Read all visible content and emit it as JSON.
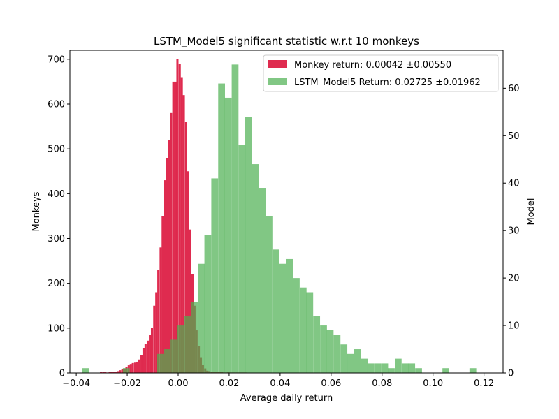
{
  "chart_data": {
    "type": "bar",
    "title": "LSTM_Model5 significant statistic w.r.t 10 monkeys",
    "xlabel": "Average daily return",
    "ylabel": "Monkeys",
    "y2label": "Model",
    "xlim": [
      -0.0425,
      0.1275
    ],
    "ylim": [
      0,
      720
    ],
    "y2lim": [
      0,
      68
    ],
    "xticks": [
      -0.04,
      -0.02,
      0.0,
      0.02,
      0.04,
      0.06,
      0.08,
      0.1,
      0.12
    ],
    "xtick_labels": [
      "−0.04",
      "−0.02",
      "0.00",
      "0.02",
      "0.04",
      "0.06",
      "0.08",
      "0.10",
      "0.12"
    ],
    "yticks": [
      0,
      100,
      200,
      300,
      400,
      500,
      600,
      700
    ],
    "y2ticks": [
      0,
      10,
      20,
      30,
      40,
      50,
      60
    ],
    "legend_position": "top-right",
    "series": [
      {
        "name": "Monkey return: 0.00042 ±0.00550",
        "axis": "left",
        "color": "#DC143C",
        "alpha": 0.9,
        "bin_width": 0.00083,
        "bin_starts": [
          -0.0307,
          -0.0298,
          -0.029,
          -0.0282,
          -0.0273,
          -0.0265,
          -0.0257,
          -0.0248,
          -0.024,
          -0.0232,
          -0.0223,
          -0.0215,
          -0.0207,
          -0.0198,
          -0.019,
          -0.0182,
          -0.0173,
          -0.0165,
          -0.0157,
          -0.0148,
          -0.014,
          -0.0132,
          -0.0123,
          -0.0115,
          -0.0107,
          -0.0098,
          -0.009,
          -0.0082,
          -0.0073,
          -0.0065,
          -0.0057,
          -0.0048,
          -0.004,
          -0.0032,
          -0.0023,
          -0.0015,
          -0.0007,
          0.0002,
          0.001,
          0.0018,
          0.0027,
          0.0035,
          0.0043,
          0.0052,
          0.006,
          0.0068,
          0.0077,
          0.0085,
          0.0093,
          0.0102,
          0.011,
          0.0118,
          0.0127,
          0.0135,
          0.0143,
          0.0152,
          0.016,
          0.0168,
          0.0177,
          0.0185,
          0.0193,
          0.0202,
          0.021,
          0.0218,
          0.0227,
          0.0235,
          0.0243,
          0.0252,
          0.026
        ],
        "values": [
          3,
          2,
          2,
          1,
          2,
          3,
          3,
          2,
          4,
          6,
          8,
          10,
          14,
          17,
          20,
          22,
          23,
          25,
          30,
          40,
          55,
          65,
          72,
          85,
          100,
          150,
          180,
          230,
          280,
          350,
          430,
          480,
          520,
          580,
          650,
          650,
          700,
          690,
          660,
          620,
          560,
          450,
          320,
          220,
          150,
          95,
          60,
          35,
          18,
          10,
          5,
          4,
          3,
          3,
          2,
          3,
          2,
          2,
          1,
          1,
          2,
          1,
          1,
          1,
          1,
          1,
          1,
          1,
          1
        ]
      },
      {
        "name": "LSTM_Model5 Return: 0.02725 ±0.01962",
        "axis": "right",
        "color": "#4CAF50",
        "alpha": 0.7,
        "bin_width": 0.00267,
        "bin_starts": [
          -0.0377,
          -0.035,
          -0.0323,
          -0.0297,
          -0.027,
          -0.0243,
          -0.0217,
          -0.019,
          -0.0163,
          -0.0137,
          -0.011,
          -0.0083,
          -0.0057,
          -0.003,
          -0.0003,
          0.0023,
          0.005,
          0.0077,
          0.0103,
          0.013,
          0.0157,
          0.0183,
          0.021,
          0.0237,
          0.0263,
          0.029,
          0.0317,
          0.0343,
          0.037,
          0.0397,
          0.0423,
          0.045,
          0.0477,
          0.0503,
          0.053,
          0.0557,
          0.0583,
          0.061,
          0.0637,
          0.0663,
          0.069,
          0.0717,
          0.0743,
          0.077,
          0.0797,
          0.0823,
          0.085,
          0.0877,
          0.0903,
          0.093,
          0.0957,
          0.0983,
          0.101,
          0.1037,
          0.1063,
          0.109,
          0.1117,
          0.1143,
          0.117,
          0.1197
        ],
        "values": [
          1,
          0,
          0,
          0,
          0,
          0,
          1,
          0,
          0,
          0,
          0,
          4,
          5,
          7,
          10,
          12,
          15,
          23,
          29,
          41,
          61,
          58,
          65,
          48,
          54,
          44,
          39,
          33,
          26,
          23,
          24,
          20,
          18,
          17,
          12,
          10,
          9,
          8,
          6,
          4,
          5,
          3,
          2,
          2,
          2,
          1,
          3,
          2,
          2,
          1,
          0,
          0,
          0,
          1,
          0,
          0,
          0,
          1,
          0,
          0
        ]
      }
    ]
  }
}
